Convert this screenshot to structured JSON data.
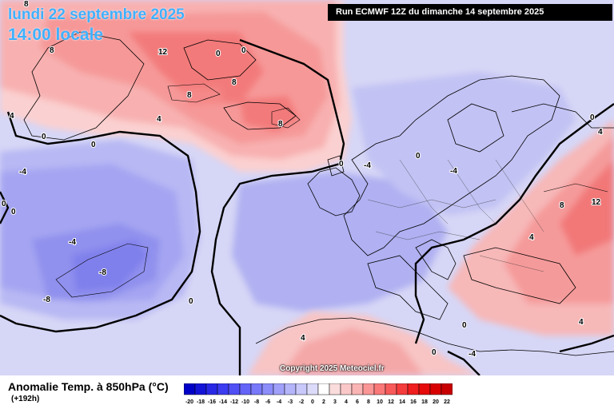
{
  "header": {
    "date_line": "lundi 22 septembre 2025",
    "time_line": "14:00 locale",
    "run_info": "Run ECMWF 12Z du dimanche 14 septembre 2025"
  },
  "copyright": "Copyright 2025 Meteociel.fr",
  "legend": {
    "title": "Anomalie Temp. à 850hPa (°C)",
    "lead_time": "(+192h)",
    "ticks": [
      "-20",
      "-18",
      "-16",
      "-14",
      "-12",
      "-10",
      "-8",
      "-6",
      "-4",
      "-3",
      "-2",
      "0",
      "2",
      "3",
      "4",
      "6",
      "8",
      "10",
      "12",
      "14",
      "16",
      "18",
      "20",
      "22"
    ],
    "colors": [
      "#0000c8",
      "#1414d8",
      "#2828e6",
      "#3c3cf0",
      "#5050f5",
      "#6464f8",
      "#7878fa",
      "#8c8cfa",
      "#a0a0fa",
      "#b4b4fa",
      "#c8c8fa",
      "#dcdcfa",
      "#ffffff",
      "#fadcdc",
      "#fac8c8",
      "#fab4b4",
      "#fa9696",
      "#fa7878",
      "#f85a5a",
      "#f53c3c",
      "#f01e1e",
      "#e60a0a",
      "#d80000",
      "#c80000"
    ]
  },
  "map_labels": [
    {
      "text": "8"
    },
    {
      "text": "8"
    },
    {
      "text": "12"
    },
    {
      "text": "0"
    },
    {
      "text": "0"
    },
    {
      "text": "8"
    },
    {
      "text": "8"
    },
    {
      "text": "4"
    },
    {
      "text": "8"
    },
    {
      "text": "0"
    },
    {
      "text": "0"
    },
    {
      "text": "4"
    },
    {
      "text": "-4"
    },
    {
      "text": "0"
    },
    {
      "text": "0"
    },
    {
      "text": "-4"
    },
    {
      "text": "-4"
    },
    {
      "text": "-8"
    },
    {
      "text": "-8"
    },
    {
      "text": "0"
    },
    {
      "text": "-4"
    },
    {
      "text": "0"
    },
    {
      "text": "0"
    },
    {
      "text": "4"
    },
    {
      "text": "8"
    },
    {
      "text": "12"
    },
    {
      "text": "4"
    },
    {
      "text": "4"
    },
    {
      "text": "0"
    },
    {
      "text": "4"
    },
    {
      "text": "0"
    },
    {
      "text": "0"
    },
    {
      "text": "-4"
    }
  ]
}
